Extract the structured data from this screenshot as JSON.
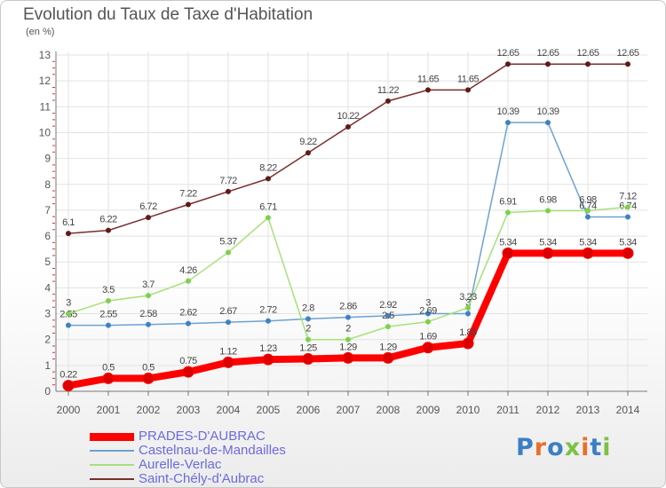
{
  "colors": {
    "grid": "#e3e3e3",
    "axis": "#777777",
    "text": "#555555",
    "legend_text": "#6b6bde"
  },
  "chart_data": {
    "type": "line",
    "title": "Evolution du Taux de Taxe d'Habitation",
    "subtitle": "(en %)",
    "x": [
      "2000",
      "2001",
      "2002",
      "2003",
      "2004",
      "2005",
      "2006",
      "2007",
      "2008",
      "2009",
      "2010",
      "2011",
      "2012",
      "2013",
      "2014"
    ],
    "yticks": [
      "0",
      "1",
      "2",
      "3",
      "4",
      "5",
      "6",
      "7",
      "8",
      "9",
      "10",
      "11",
      "12",
      "13"
    ],
    "ylim": [
      0,
      13
    ],
    "grid": true,
    "legend_position": "bottom-left",
    "series": [
      {
        "name": "PRADES-D'AUBRAC",
        "color": "#ff0000",
        "point_color": "#dd0000",
        "width": 8,
        "values": [
          0.22,
          0.5,
          0.5,
          0.75,
          1.12,
          1.23,
          1.25,
          1.29,
          1.29,
          1.69,
          1.85,
          5.34,
          5.34,
          5.34,
          5.34
        ],
        "labels": [
          "0.22",
          "0.5",
          "0.5",
          "0.75",
          "1.12",
          "1.23",
          "1.25",
          "1.29",
          "1.29",
          "1.69",
          "1.85",
          "5.34",
          "5.34",
          "5.34",
          "5.34"
        ]
      },
      {
        "name": "Castelnau-de-Mandailles",
        "color": "#6da2d1",
        "point_color": "#3d82c4",
        "width": 1.5,
        "values": [
          2.55,
          2.55,
          2.58,
          2.62,
          2.67,
          2.72,
          2.8,
          2.86,
          2.92,
          3.0,
          3.0,
          10.39,
          10.39,
          6.74,
          6.74
        ],
        "labels": [
          "2.55",
          "2.55",
          "2.58",
          "2.62",
          "2.67",
          "2.72",
          "2.8",
          "2.86",
          "2.92",
          "3",
          "3",
          "10.39",
          "10.39",
          "6.74",
          "6.74"
        ]
      },
      {
        "name": "Aurelle-Verlac",
        "color": "#a8e07a",
        "point_color": "#7ed04a",
        "width": 1.5,
        "values": [
          3.0,
          3.5,
          3.7,
          4.26,
          5.37,
          6.71,
          2.0,
          2.0,
          2.5,
          2.69,
          3.23,
          6.91,
          6.98,
          6.98,
          7.12
        ],
        "labels": [
          "3",
          "3.5",
          "3.7",
          "4.26",
          "5.37",
          "6.71",
          "2",
          "2",
          "2.5",
          "2.69",
          "3.23",
          "6.91",
          "6.98",
          "6.98",
          "7.12"
        ]
      },
      {
        "name": "Saint-Chély-d'Aubrac",
        "color": "#7a2e2e",
        "point_color": "#5f1a1a",
        "width": 1.5,
        "values": [
          6.1,
          6.22,
          6.72,
          7.22,
          7.72,
          8.22,
          9.22,
          10.22,
          11.22,
          11.65,
          11.65,
          12.65,
          12.65,
          12.65,
          12.65
        ],
        "labels": [
          "6.1",
          "6.22",
          "6.72",
          "7.22",
          "7.72",
          "8.22",
          "9.22",
          "10.22",
          "11.22",
          "11.65",
          "11.65",
          "12.65",
          "12.65",
          "12.65",
          "12.65"
        ]
      }
    ]
  },
  "logo": {
    "text": "Proxiti",
    "letter_colors": [
      "#3b7fc4",
      "#e8702a",
      "#3b7fc4",
      "#7cc242",
      "#e8702a",
      "#3b7fc4",
      "#7cc242"
    ]
  }
}
